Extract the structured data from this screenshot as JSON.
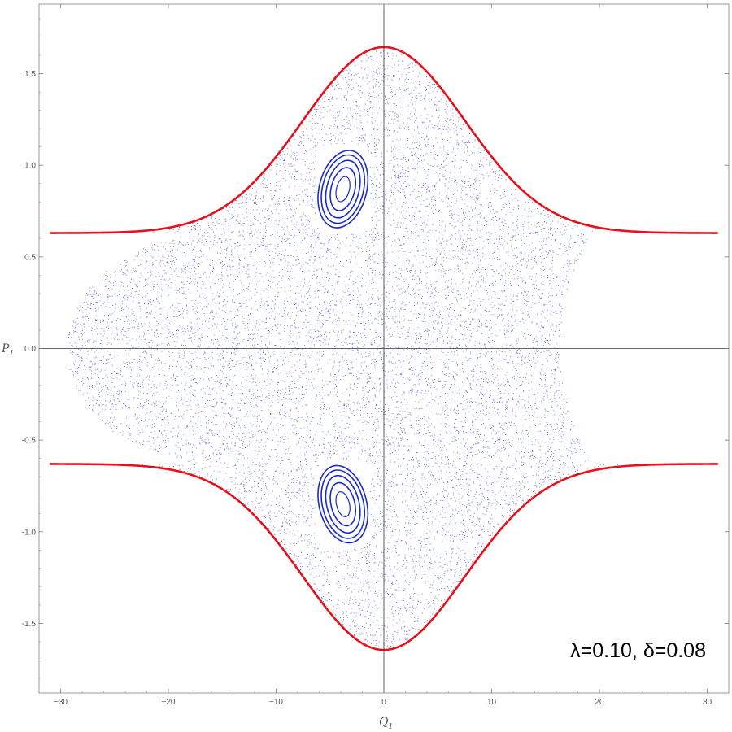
{
  "chart_data": {
    "type": "scatter",
    "title": "",
    "xlabel": "Q",
    "xlabel_sub": "1",
    "ylabel": "P",
    "ylabel_sub": "1",
    "xlim": [
      -32,
      32
    ],
    "ylim": [
      -1.88,
      1.88
    ],
    "xticks": [
      -30,
      -20,
      -10,
      0,
      10,
      20,
      30
    ],
    "xtick_labels": [
      "−30",
      "−20",
      "−10",
      "0",
      "10",
      "20",
      "30"
    ],
    "yticks": [
      -1.5,
      -1.0,
      -0.5,
      0.0,
      0.5,
      1.0,
      1.5
    ],
    "ytick_labels": [
      "-1.5",
      "-1.0",
      "-0.5",
      "0.0",
      "0.5",
      "1.0",
      "1.5"
    ],
    "annotation": "λ=0.10, δ=0.08",
    "grid": false,
    "series": [
      {
        "kind": "boundary",
        "color": "#e8101a",
        "shape": {
          "asymptote": 0.63,
          "peak": 1.645,
          "width": 7.5,
          "x_range": [
            -31,
            31
          ]
        }
      },
      {
        "kind": "chaotic-sea",
        "color": "#2233dd",
        "density": 13000,
        "left_edge": {
          "x_at_zero": -29.4,
          "x_at_0_63": -15.5
        },
        "right_edge": {
          "x_at_zero": 16.3,
          "x_at_0_63": 19.3
        }
      },
      {
        "kind": "islands",
        "color": "#1a2acc",
        "centers": [
          {
            "x": -3.8,
            "y": 0.87,
            "rx": [
              0.6,
              1.1,
              1.5,
              1.9,
              2.2
            ],
            "ry": [
              0.07,
              0.12,
              0.16,
              0.19,
              0.215
            ]
          },
          {
            "x": -3.8,
            "y": -0.85,
            "rx": [
              0.6,
              1.1,
              1.5,
              1.9,
              2.2
            ],
            "ry": [
              0.07,
              0.12,
              0.16,
              0.19,
              0.215
            ]
          }
        ]
      }
    ]
  }
}
